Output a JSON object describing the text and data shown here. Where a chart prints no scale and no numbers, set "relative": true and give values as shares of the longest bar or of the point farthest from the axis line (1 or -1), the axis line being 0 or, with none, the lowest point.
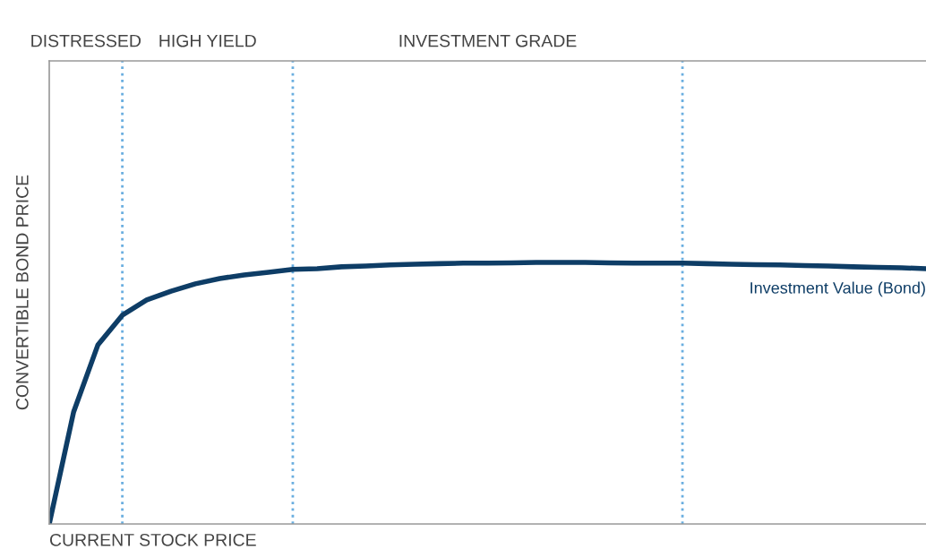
{
  "chart_data": {
    "type": "line",
    "relative": true,
    "xlabel": "CURRENT STOCK PRICE",
    "ylabel": "CONVERTIBLE BOND PRICE",
    "categories": [
      null,
      null,
      null,
      null,
      null,
      null,
      null,
      null,
      null,
      null,
      null,
      null,
      null,
      null,
      null,
      null,
      null,
      null,
      null,
      null,
      null,
      null,
      null,
      null,
      null,
      null,
      null,
      null,
      null,
      null,
      null,
      null,
      null,
      null,
      null,
      null,
      null
    ],
    "series": [
      {
        "name": "Investment Value (Bond)",
        "color": "#0e3d66",
        "values": [
          0,
          0.428,
          0.685,
          0.798,
          0.856,
          0.89,
          0.918,
          0.938,
          0.952,
          0.962,
          0.973,
          0.976,
          0.983,
          0.986,
          0.99,
          0.993,
          0.995,
          0.997,
          0.997,
          0.998,
          1.0,
          1.0,
          1.0,
          0.998,
          0.997,
          0.997,
          0.997,
          0.995,
          0.993,
          0.991,
          0.99,
          0.988,
          0.986,
          0.983,
          0.981,
          0.979,
          0.976
        ]
      }
    ],
    "annotations": [
      "DISTRESSED",
      "HIGH YIELD",
      "INVESTMENT GRADE"
    ],
    "grid": "x",
    "legend": false
  }
}
